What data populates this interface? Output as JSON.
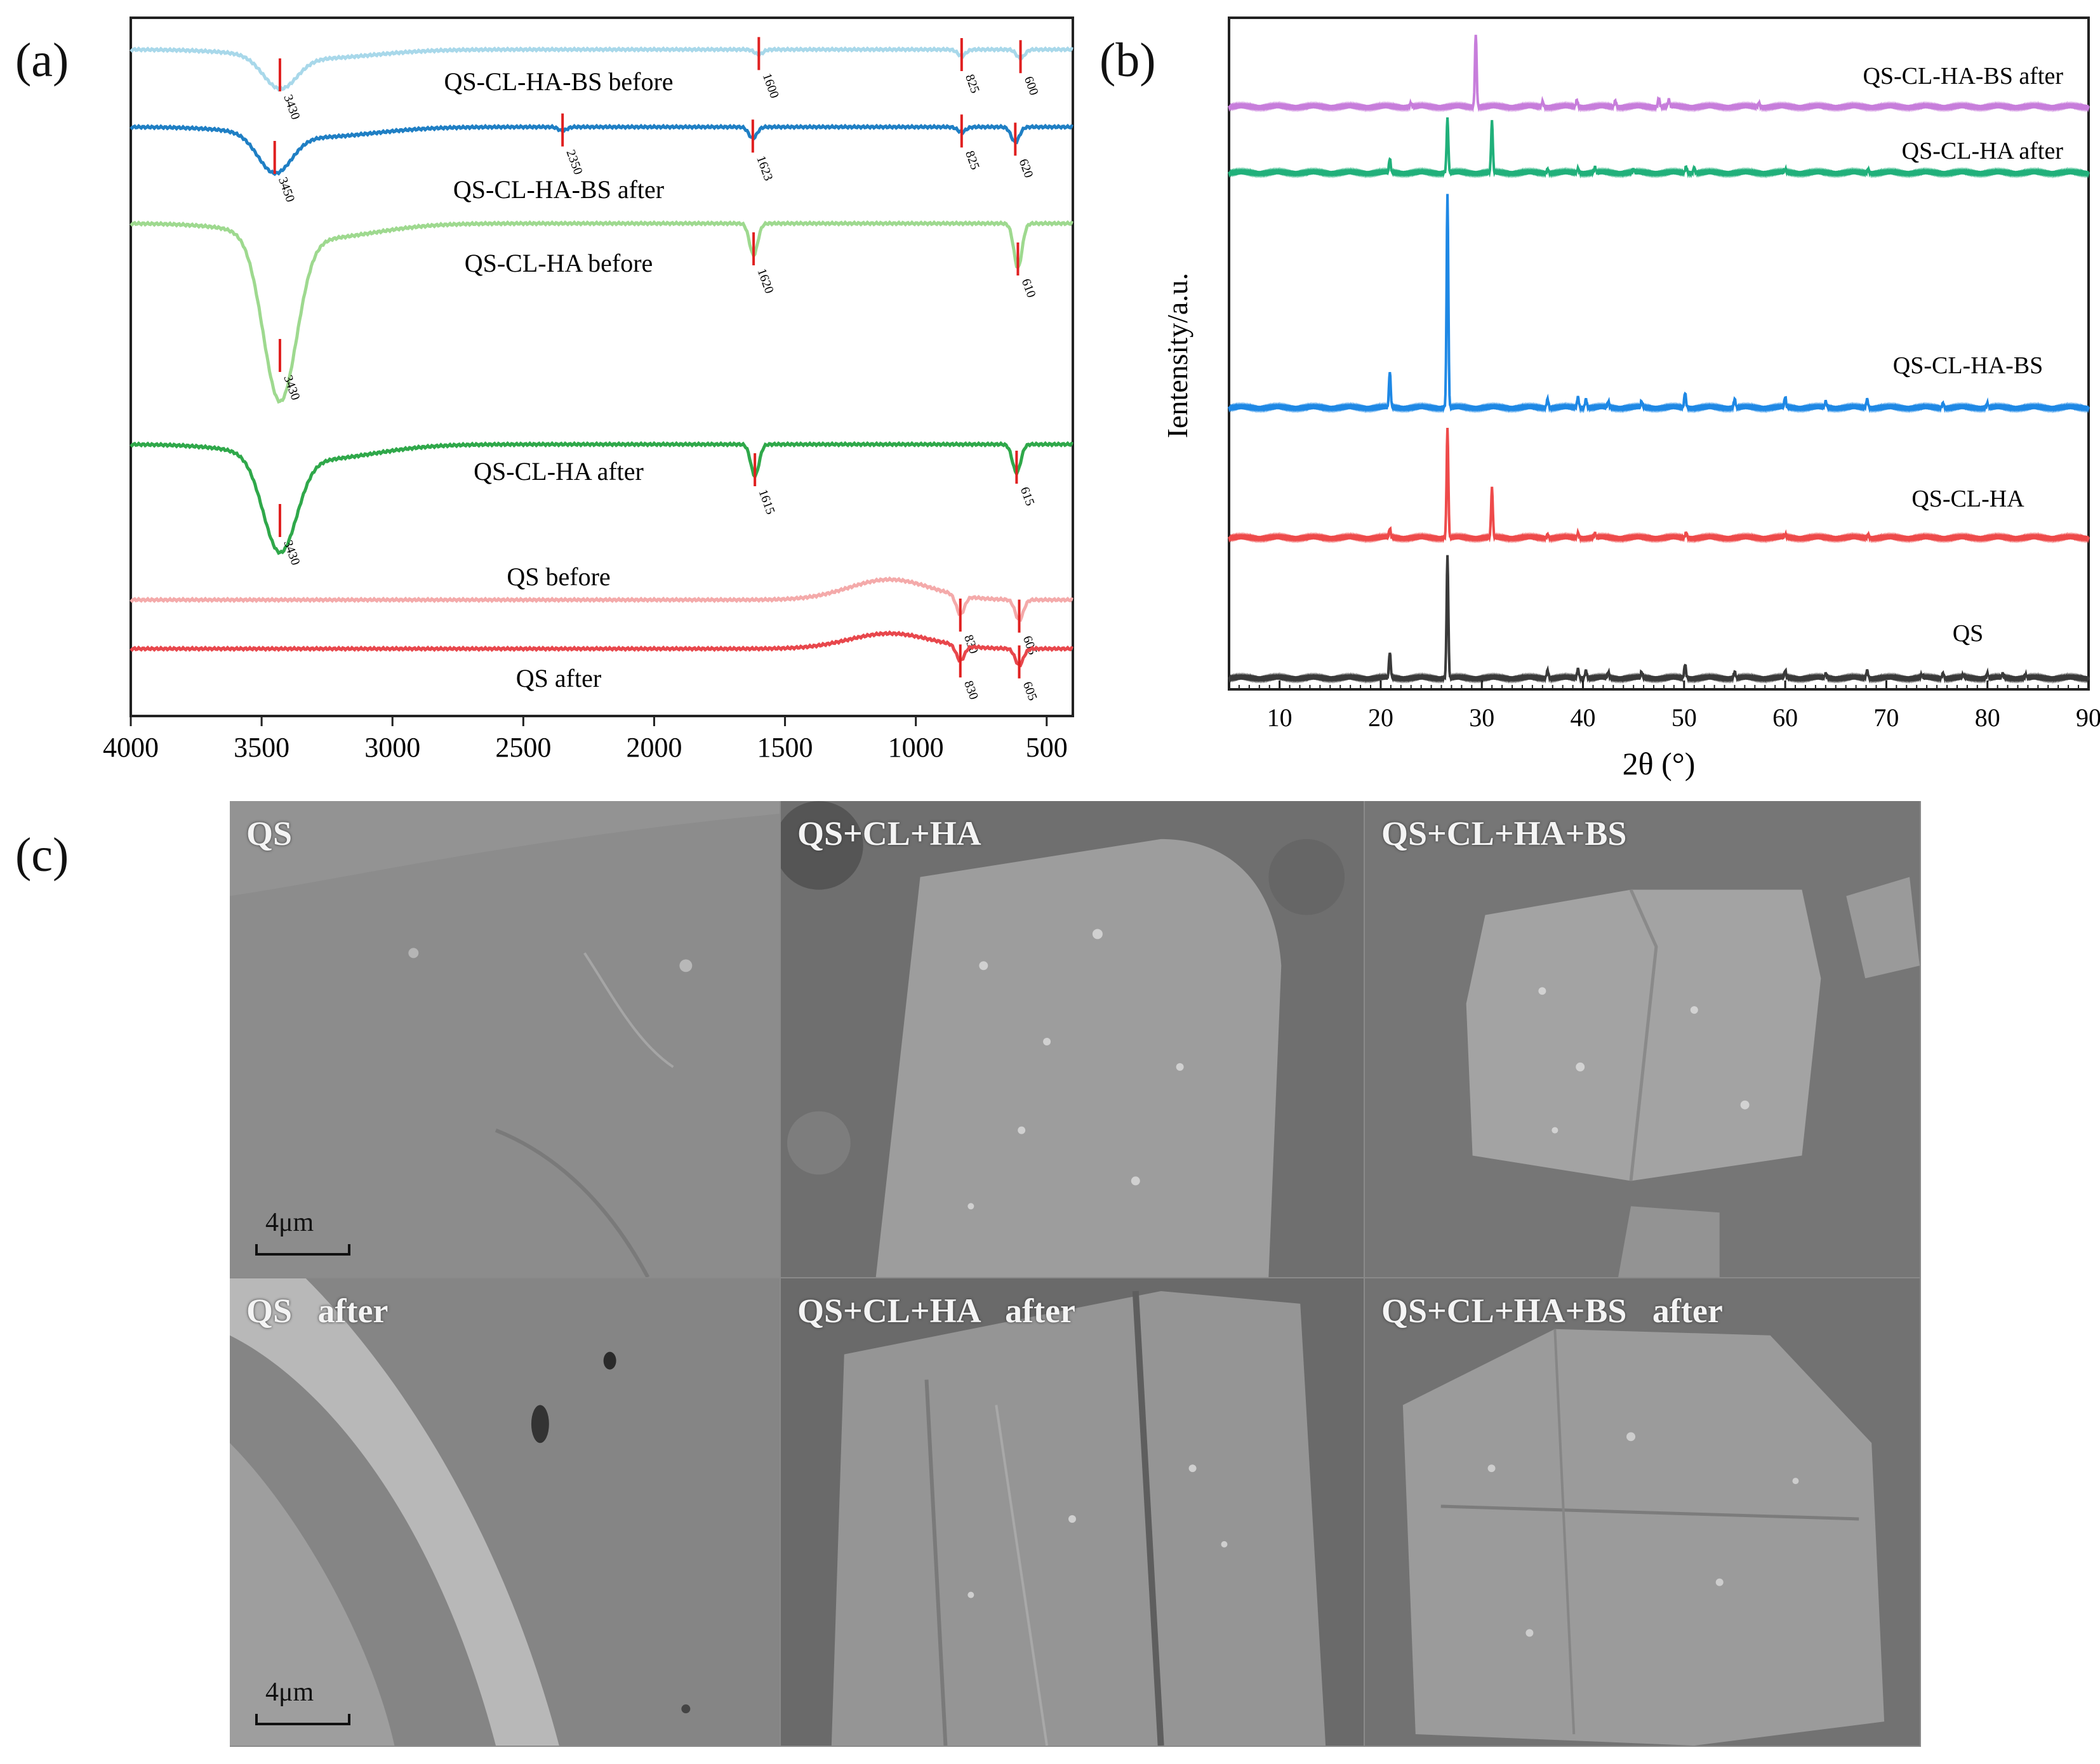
{
  "panel_labels": {
    "a": "(a)",
    "b": "(b)",
    "c": "(c)"
  },
  "chart_data": [
    {
      "panel": "(a)",
      "type": "line",
      "xlabel": "",
      "ylabel": "",
      "xlim": [
        4000,
        400
      ],
      "xticks": [
        4000,
        3500,
        3000,
        2500,
        2000,
        1500,
        1000,
        500
      ],
      "series": [
        {
          "name": "QS-CL-HA-BS  before",
          "color": "#a8d8ea",
          "peaks": [
            {
              "x": 3430,
              "label": "3430"
            },
            {
              "x": 1600,
              "label": "1600"
            },
            {
              "x": 825,
              "label": "825"
            },
            {
              "x": 600,
              "label": "600"
            }
          ]
        },
        {
          "name": "QS-CL-HA-BS  after",
          "color": "#1f7fc4",
          "peaks": [
            {
              "x": 3450,
              "label": "3450"
            },
            {
              "x": 2350,
              "label": "2350"
            },
            {
              "x": 1623,
              "label": "1623"
            },
            {
              "x": 825,
              "label": "825"
            },
            {
              "x": 620,
              "label": "620"
            }
          ]
        },
        {
          "name": "QS-CL-HA before",
          "color": "#9ed98f",
          "peaks": [
            {
              "x": 3430,
              "label": "3430"
            },
            {
              "x": 1620,
              "label": "1620"
            },
            {
              "x": 610,
              "label": "610"
            }
          ]
        },
        {
          "name": "QS-CL-HA after",
          "color": "#2fa84a",
          "peaks": [
            {
              "x": 3430,
              "label": "3430"
            },
            {
              "x": 1615,
              "label": "1615"
            },
            {
              "x": 615,
              "label": "615"
            }
          ]
        },
        {
          "name": "QS  before",
          "color": "#f4aaaa",
          "peaks": [
            {
              "x": 830,
              "label": "830"
            },
            {
              "x": 605,
              "label": "605"
            }
          ]
        },
        {
          "name": "QS  after",
          "color": "#e8474c",
          "peaks": [
            {
              "x": 830,
              "label": "830"
            },
            {
              "x": 605,
              "label": "605"
            }
          ]
        }
      ]
    },
    {
      "panel": "(b)",
      "type": "line",
      "xlabel": "2θ (°)",
      "ylabel": "Ientensity/a.u.",
      "xlim": [
        5,
        90
      ],
      "xticks": [
        10,
        20,
        30,
        40,
        50,
        60,
        70,
        80,
        90
      ],
      "series": [
        {
          "name": "QS-CL-HA-BS after",
          "color": "#c77ddb",
          "peaks": [
            {
              "x": 29.4,
              "h": 1.0
            },
            {
              "x": 23.0,
              "h": 0.05
            },
            {
              "x": 36.0,
              "h": 0.07
            },
            {
              "x": 39.4,
              "h": 0.09
            },
            {
              "x": 43.2,
              "h": 0.08
            },
            {
              "x": 47.5,
              "h": 0.12
            },
            {
              "x": 48.5,
              "h": 0.1
            },
            {
              "x": 57.4,
              "h": 0.05
            }
          ]
        },
        {
          "name": "QS-CL-HA after",
          "color": "#20b07a",
          "peaks": [
            {
              "x": 20.9,
              "h": 0.25
            },
            {
              "x": 26.6,
              "h": 0.95
            },
            {
              "x": 31.0,
              "h": 0.9
            },
            {
              "x": 36.5,
              "h": 0.06
            },
            {
              "x": 39.5,
              "h": 0.07
            },
            {
              "x": 41.2,
              "h": 0.1
            },
            {
              "x": 45.0,
              "h": 0.06
            },
            {
              "x": 50.2,
              "h": 0.1
            },
            {
              "x": 51.0,
              "h": 0.08
            },
            {
              "x": 60.0,
              "h": 0.06
            },
            {
              "x": 68.2,
              "h": 0.06
            }
          ]
        },
        {
          "name": "QS-CL-HA-BS",
          "color": "#1e88e5",
          "peaks": [
            {
              "x": 20.9,
              "h": 0.17
            },
            {
              "x": 26.6,
              "h": 1.0
            },
            {
              "x": 36.5,
              "h": 0.04
            },
            {
              "x": 39.5,
              "h": 0.05
            },
            {
              "x": 40.3,
              "h": 0.04
            },
            {
              "x": 42.5,
              "h": 0.03
            },
            {
              "x": 45.8,
              "h": 0.03
            },
            {
              "x": 50.1,
              "h": 0.07
            },
            {
              "x": 55.0,
              "h": 0.04
            },
            {
              "x": 60.0,
              "h": 0.05
            },
            {
              "x": 64.0,
              "h": 0.03
            },
            {
              "x": 68.1,
              "h": 0.04
            },
            {
              "x": 75.6,
              "h": 0.02
            },
            {
              "x": 80.0,
              "h": 0.02
            }
          ]
        },
        {
          "name": "QS-CL-HA",
          "color": "#ee4a4a",
          "peaks": [
            {
              "x": 20.9,
              "h": 0.06
            },
            {
              "x": 26.6,
              "h": 0.7
            },
            {
              "x": 31.0,
              "h": 0.32
            },
            {
              "x": 36.5,
              "h": 0.02
            },
            {
              "x": 39.5,
              "h": 0.03
            },
            {
              "x": 41.2,
              "h": 0.03
            },
            {
              "x": 50.2,
              "h": 0.03
            },
            {
              "x": 60.0,
              "h": 0.02
            },
            {
              "x": 68.2,
              "h": 0.02
            }
          ]
        },
        {
          "name": "QS",
          "color": "#3a3a3a",
          "peaks": [
            {
              "x": 20.9,
              "h": 0.17
            },
            {
              "x": 26.6,
              "h": 0.8
            },
            {
              "x": 36.5,
              "h": 0.05
            },
            {
              "x": 39.5,
              "h": 0.06
            },
            {
              "x": 40.3,
              "h": 0.05
            },
            {
              "x": 42.5,
              "h": 0.04
            },
            {
              "x": 45.8,
              "h": 0.04
            },
            {
              "x": 50.1,
              "h": 0.09
            },
            {
              "x": 55.0,
              "h": 0.04
            },
            {
              "x": 60.0,
              "h": 0.05
            },
            {
              "x": 64.0,
              "h": 0.03
            },
            {
              "x": 68.1,
              "h": 0.05
            },
            {
              "x": 73.5,
              "h": 0.02
            },
            {
              "x": 75.6,
              "h": 0.03
            },
            {
              "x": 77.6,
              "h": 0.02
            },
            {
              "x": 80.0,
              "h": 0.03
            },
            {
              "x": 81.5,
              "h": 0.03
            },
            {
              "x": 83.8,
              "h": 0.02
            }
          ]
        }
      ]
    }
  ],
  "sem": {
    "panels": [
      {
        "label": "QS",
        "scale": "4μm",
        "tone": "#8c8c8c"
      },
      {
        "label": "QS+CL+HA",
        "scale": "",
        "tone": "#6f6f6f"
      },
      {
        "label": "QS+CL+HA+BS",
        "scale": "",
        "tone": "#767676"
      },
      {
        "label": "QS   after",
        "scale": "4μm",
        "tone": "#858585"
      },
      {
        "label": "QS+CL+HA   after",
        "scale": "",
        "tone": "#6a6a6a"
      },
      {
        "label": "QS+CL+HA+BS   after",
        "scale": "",
        "tone": "#727272"
      }
    ]
  }
}
